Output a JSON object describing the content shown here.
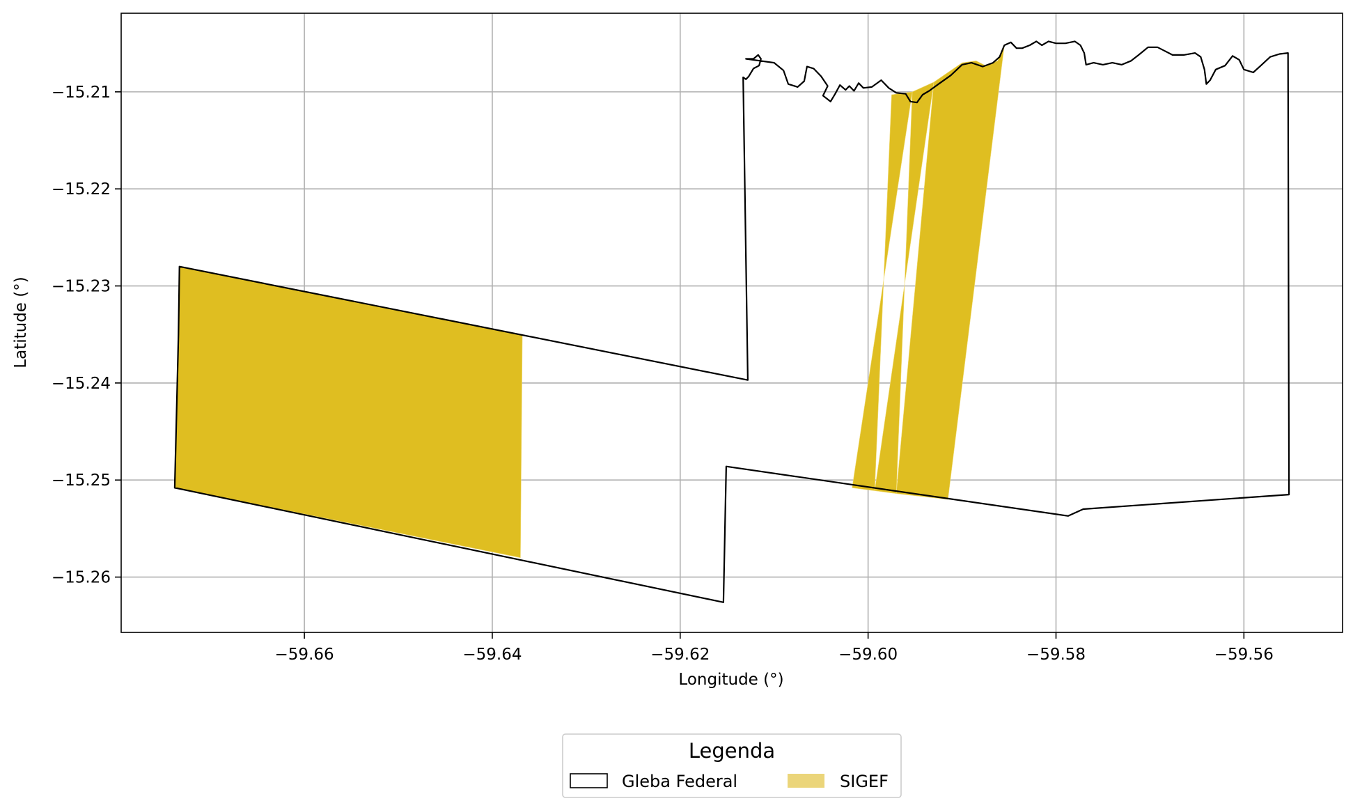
{
  "chart_data": {
    "type": "map",
    "xlabel": "Longitude (°)",
    "ylabel": "Latitude (°)",
    "xlim": [
      -59.6795,
      -59.5495
    ],
    "ylim": [
      -15.2657,
      -15.2019
    ],
    "grid": true,
    "x_ticks": [
      -59.66,
      -59.64,
      -59.62,
      -59.6,
      -59.58,
      -59.56
    ],
    "y_ticks": [
      -15.21,
      -15.22,
      -15.23,
      -15.24,
      -15.25,
      -15.26
    ],
    "x_tick_labels": [
      "−59.66",
      "−59.64",
      "−59.62",
      "−59.60",
      "−59.58",
      "−59.56"
    ],
    "y_tick_labels": [
      "−15.21",
      "−15.22",
      "−15.23",
      "−15.24",
      "−15.25",
      "−15.26"
    ],
    "legend": {
      "title": "Legenda",
      "placement": "bottom-center",
      "entries": [
        {
          "label": "Gleba Federal",
          "style": "outline",
          "color": "#000000"
        },
        {
          "label": "SIGEF",
          "style": "fill",
          "color": "#ebd57a"
        }
      ]
    },
    "layers": {
      "sigef": {
        "name": "SIGEF",
        "color": "#dfbe21",
        "polygons": [
          [
            [
              -59.6733,
              -15.228
            ],
            [
              -59.6368,
              -15.2351
            ],
            [
              -59.637,
              -15.258
            ],
            [
              -59.6738,
              -15.2508
            ]
          ],
          [
            [
              -59.5975,
              -15.2103
            ],
            [
              -59.5953,
              -15.21
            ],
            [
              -59.6017,
              -15.2508
            ],
            [
              -59.5993,
              -15.2511
            ]
          ],
          [
            [
              -59.5953,
              -15.21
            ],
            [
              -59.593,
              -15.209
            ],
            [
              -59.5993,
              -15.2511
            ],
            [
              -59.597,
              -15.2514
            ]
          ],
          [
            [
              -59.593,
              -15.209
            ],
            [
              -59.5915,
              -15.208
            ],
            [
              -59.59,
              -15.207
            ],
            [
              -59.5885,
              -15.2068
            ],
            [
              -59.5875,
              -15.2073
            ],
            [
              -59.5862,
              -15.2068
            ],
            [
              -59.5855,
              -15.2052
            ],
            [
              -59.5915,
              -15.252
            ],
            [
              -59.597,
              -15.2514
            ]
          ]
        ]
      },
      "gleba_federal": {
        "name": "Gleba Federal",
        "color": "#000000",
        "polygon": [
          [
            -59.6733,
            -15.228
          ],
          [
            -59.6128,
            -15.2397
          ],
          [
            -59.6133,
            -15.2085
          ],
          [
            -59.613,
            -15.2087
          ],
          [
            -59.6127,
            -15.2084
          ],
          [
            -59.6122,
            -15.2076
          ],
          [
            -59.6116,
            -15.2073
          ],
          [
            -59.6114,
            -15.2066
          ],
          [
            -59.6117,
            -15.2062
          ],
          [
            -59.6122,
            -15.2066
          ],
          [
            -59.613,
            -15.2066
          ],
          [
            -59.6115,
            -15.2068
          ],
          [
            -59.61,
            -15.207
          ],
          [
            -59.609,
            -15.2078
          ],
          [
            -59.6085,
            -15.2092
          ],
          [
            -59.6075,
            -15.2095
          ],
          [
            -59.6068,
            -15.2089
          ],
          [
            -59.6065,
            -15.2074
          ],
          [
            -59.6058,
            -15.2076
          ],
          [
            -59.605,
            -15.2084
          ],
          [
            -59.6043,
            -15.2094
          ],
          [
            -59.6048,
            -15.2104
          ],
          [
            -59.604,
            -15.211
          ],
          [
            -59.6035,
            -15.2102
          ],
          [
            -59.603,
            -15.2093
          ],
          [
            -59.6024,
            -15.2098
          ],
          [
            -59.602,
            -15.2094
          ],
          [
            -59.6015,
            -15.2099
          ],
          [
            -59.601,
            -15.2091
          ],
          [
            -59.6005,
            -15.2096
          ],
          [
            -59.5996,
            -15.2095
          ],
          [
            -59.5986,
            -15.2088
          ],
          [
            -59.5978,
            -15.2096
          ],
          [
            -59.597,
            -15.2101
          ],
          [
            -59.596,
            -15.2102
          ],
          [
            -59.5955,
            -15.211
          ],
          [
            -59.5948,
            -15.2111
          ],
          [
            -59.5942,
            -15.2103
          ],
          [
            -59.5935,
            -15.2099
          ],
          [
            -59.5925,
            -15.2092
          ],
          [
            -59.5912,
            -15.2083
          ],
          [
            -59.59,
            -15.2072
          ],
          [
            -59.589,
            -15.207
          ],
          [
            -59.5878,
            -15.2074
          ],
          [
            -59.5867,
            -15.207
          ],
          [
            -59.586,
            -15.2064
          ],
          [
            -59.5855,
            -15.2052
          ],
          [
            -59.5848,
            -15.2049
          ],
          [
            -59.5842,
            -15.2055
          ],
          [
            -59.5836,
            -15.2055
          ],
          [
            -59.5828,
            -15.2052
          ],
          [
            -59.5821,
            -15.2048
          ],
          [
            -59.5815,
            -15.2052
          ],
          [
            -59.5808,
            -15.2048
          ],
          [
            -59.58,
            -15.205
          ],
          [
            -59.579,
            -15.205
          ],
          [
            -59.578,
            -15.2048
          ],
          [
            -59.5774,
            -15.2052
          ],
          [
            -59.577,
            -15.206
          ],
          [
            -59.5768,
            -15.2072
          ],
          [
            -59.576,
            -15.207
          ],
          [
            -59.575,
            -15.2072
          ],
          [
            -59.574,
            -15.207
          ],
          [
            -59.573,
            -15.2072
          ],
          [
            -59.572,
            -15.2068
          ],
          [
            -59.5712,
            -15.2062
          ],
          [
            -59.5702,
            -15.2054
          ],
          [
            -59.5692,
            -15.2054
          ],
          [
            -59.5684,
            -15.2058
          ],
          [
            -59.5676,
            -15.2062
          ],
          [
            -59.5664,
            -15.2062
          ],
          [
            -59.5652,
            -15.206
          ],
          [
            -59.5646,
            -15.2064
          ],
          [
            -59.5642,
            -15.2077
          ],
          [
            -59.564,
            -15.2092
          ],
          [
            -59.5636,
            -15.2088
          ],
          [
            -59.563,
            -15.2077
          ],
          [
            -59.562,
            -15.2073
          ],
          [
            -59.5612,
            -15.2063
          ],
          [
            -59.5605,
            -15.2067
          ],
          [
            -59.56,
            -15.2077
          ],
          [
            -59.559,
            -15.208
          ],
          [
            -59.5582,
            -15.2073
          ],
          [
            -59.5572,
            -15.2064
          ],
          [
            -59.5562,
            -15.2061
          ],
          [
            -59.5553,
            -15.206
          ],
          [
            -59.5552,
            -15.2515
          ],
          [
            -59.5771,
            -15.253
          ],
          [
            -59.5787,
            -15.2537
          ],
          [
            -59.6151,
            -15.2486
          ],
          [
            -59.6154,
            -15.2626
          ],
          [
            -59.6738,
            -15.2508
          ],
          [
            -59.6734,
            -15.235
          ],
          [
            -59.6733,
            -15.228
          ]
        ]
      }
    }
  }
}
